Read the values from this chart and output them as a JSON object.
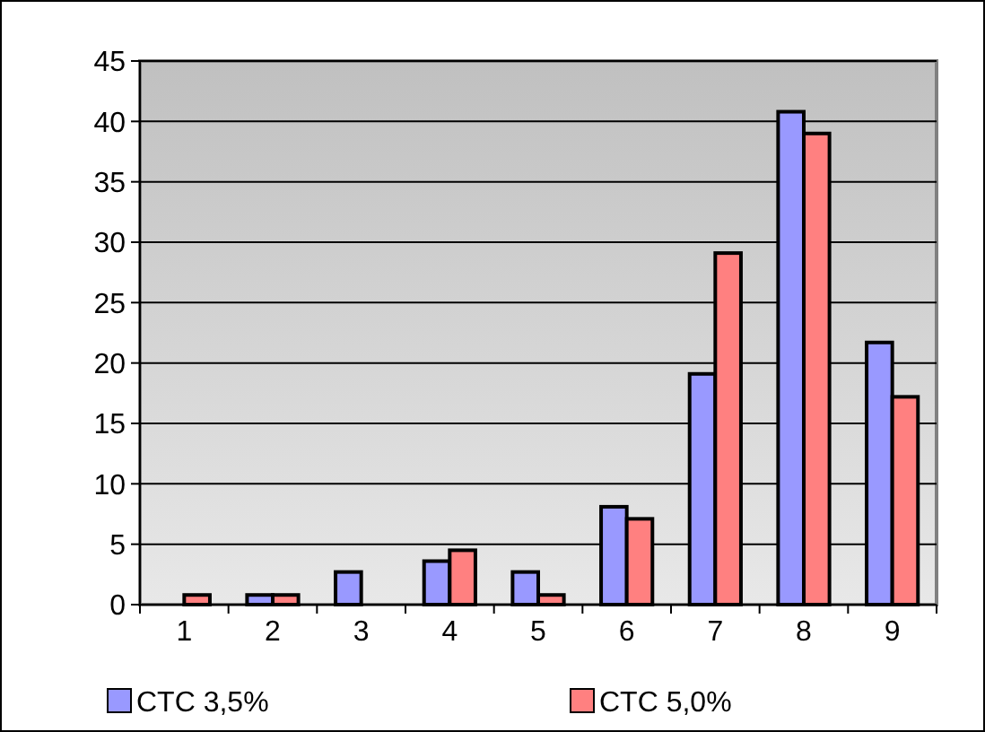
{
  "chart_data": {
    "type": "bar",
    "categories": [
      "1",
      "2",
      "3",
      "4",
      "5",
      "6",
      "7",
      "8",
      "9"
    ],
    "series": [
      {
        "name": "CTC 3,5%",
        "color": "#9999ff",
        "values": [
          0,
          0.8,
          2.7,
          3.6,
          2.7,
          8.1,
          19.1,
          40.8,
          21.7
        ]
      },
      {
        "name": "CTC 5,0%",
        "color": "#ff8080",
        "values": [
          0.8,
          0.8,
          0,
          4.5,
          0.8,
          7.1,
          29.1,
          39,
          17.2
        ]
      }
    ],
    "ylim": [
      0,
      45
    ],
    "yticks": [
      0,
      5,
      10,
      15,
      20,
      25,
      30,
      35,
      40,
      45
    ],
    "grid": "y",
    "legend": "bottom"
  }
}
